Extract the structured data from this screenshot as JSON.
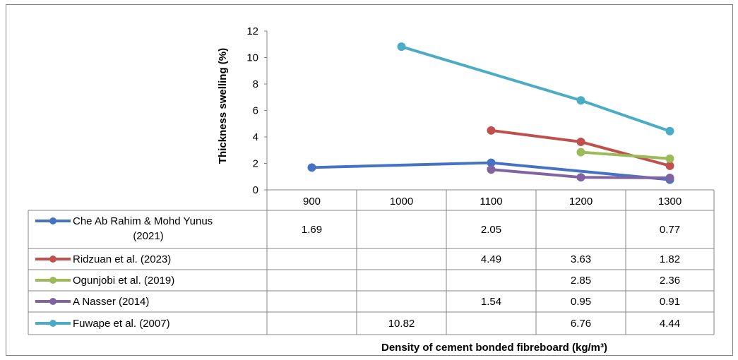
{
  "chart_data": {
    "type": "line",
    "categories": [
      "900",
      "1000",
      "1100",
      "1200",
      "1300"
    ],
    "series": [
      {
        "name": "Che Ab Rahim & Mohd Yunus (2021)",
        "label_lines": [
          "Che Ab Rahim & Mohd Yunus",
          "(2021)"
        ],
        "color": "#4472C4",
        "values": [
          1.69,
          null,
          2.05,
          null,
          0.77
        ],
        "labels": [
          "1.69",
          "",
          "2.05",
          "",
          "0.77"
        ]
      },
      {
        "name": "Ridzuan et al. (2023)",
        "label_lines": [
          "Ridzuan et al. (2023)"
        ],
        "color": "#C0504D",
        "values": [
          null,
          null,
          4.49,
          3.63,
          1.82
        ],
        "labels": [
          "",
          "",
          "4.49",
          "3.63",
          "1.82"
        ]
      },
      {
        "name": "Ogunjobi et al. (2019)",
        "label_lines": [
          "Ogunjobi et al. (2019)"
        ],
        "color": "#9BBB59",
        "values": [
          null,
          null,
          null,
          2.85,
          2.36
        ],
        "labels": [
          "",
          "",
          "",
          "2.85",
          "2.36"
        ]
      },
      {
        "name": "A Nasser (2014)",
        "label_lines": [
          "A Nasser (2014)"
        ],
        "color": "#8064A2",
        "values": [
          null,
          null,
          1.54,
          0.95,
          0.91
        ],
        "labels": [
          "",
          "",
          "1.54",
          "0.95",
          "0.91"
        ]
      },
      {
        "name": "Fuwape et al. (2007)",
        "label_lines": [
          "Fuwape et al. (2007)"
        ],
        "color": "#4BACC6",
        "values": [
          null,
          10.82,
          null,
          6.76,
          4.44
        ],
        "labels": [
          "",
          "10.82",
          "",
          "6.76",
          "4.44"
        ]
      }
    ],
    "yticks": [
      "0",
      "2",
      "4",
      "6",
      "8",
      "10",
      "12"
    ],
    "ylim": [
      0,
      12
    ],
    "ylabel": "Thickness swelling (%)",
    "xlabel": "Density of cement bonded fibreboard (kg/m³)",
    "grid": false,
    "legend": "data-table"
  }
}
